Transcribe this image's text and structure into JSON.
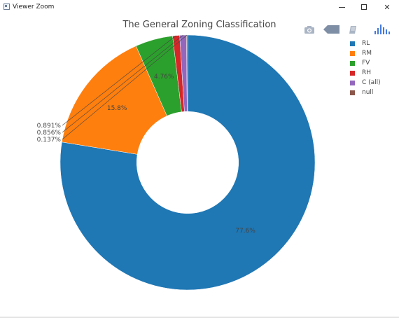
{
  "window": {
    "title": "Viewer Zoom"
  },
  "window_controls": {
    "minimize": "minimize",
    "maximize": "maximize",
    "close": "close"
  },
  "modebar": {
    "icons": [
      "camera-icon",
      "tag-icon",
      "book-icon",
      "plotly-logo-icon"
    ]
  },
  "chart_data": {
    "type": "pie",
    "hole": 0.4,
    "title": "The General Zoning Classification",
    "categories": [
      "RL",
      "RM",
      "FV",
      "RH",
      "C (all)",
      "null"
    ],
    "values": [
      77.6,
      15.8,
      4.76,
      0.891,
      0.856,
      0.137
    ],
    "value_labels": [
      "77.6%",
      "15.8%",
      "4.76%",
      "0.891%",
      "0.856%",
      "0.137%"
    ],
    "colors": [
      "#1f77b4",
      "#ff7f0e",
      "#2ca02c",
      "#d62728",
      "#9467bd",
      "#8c564b"
    ],
    "direction": "clockwise",
    "legend_position": "top-right"
  }
}
